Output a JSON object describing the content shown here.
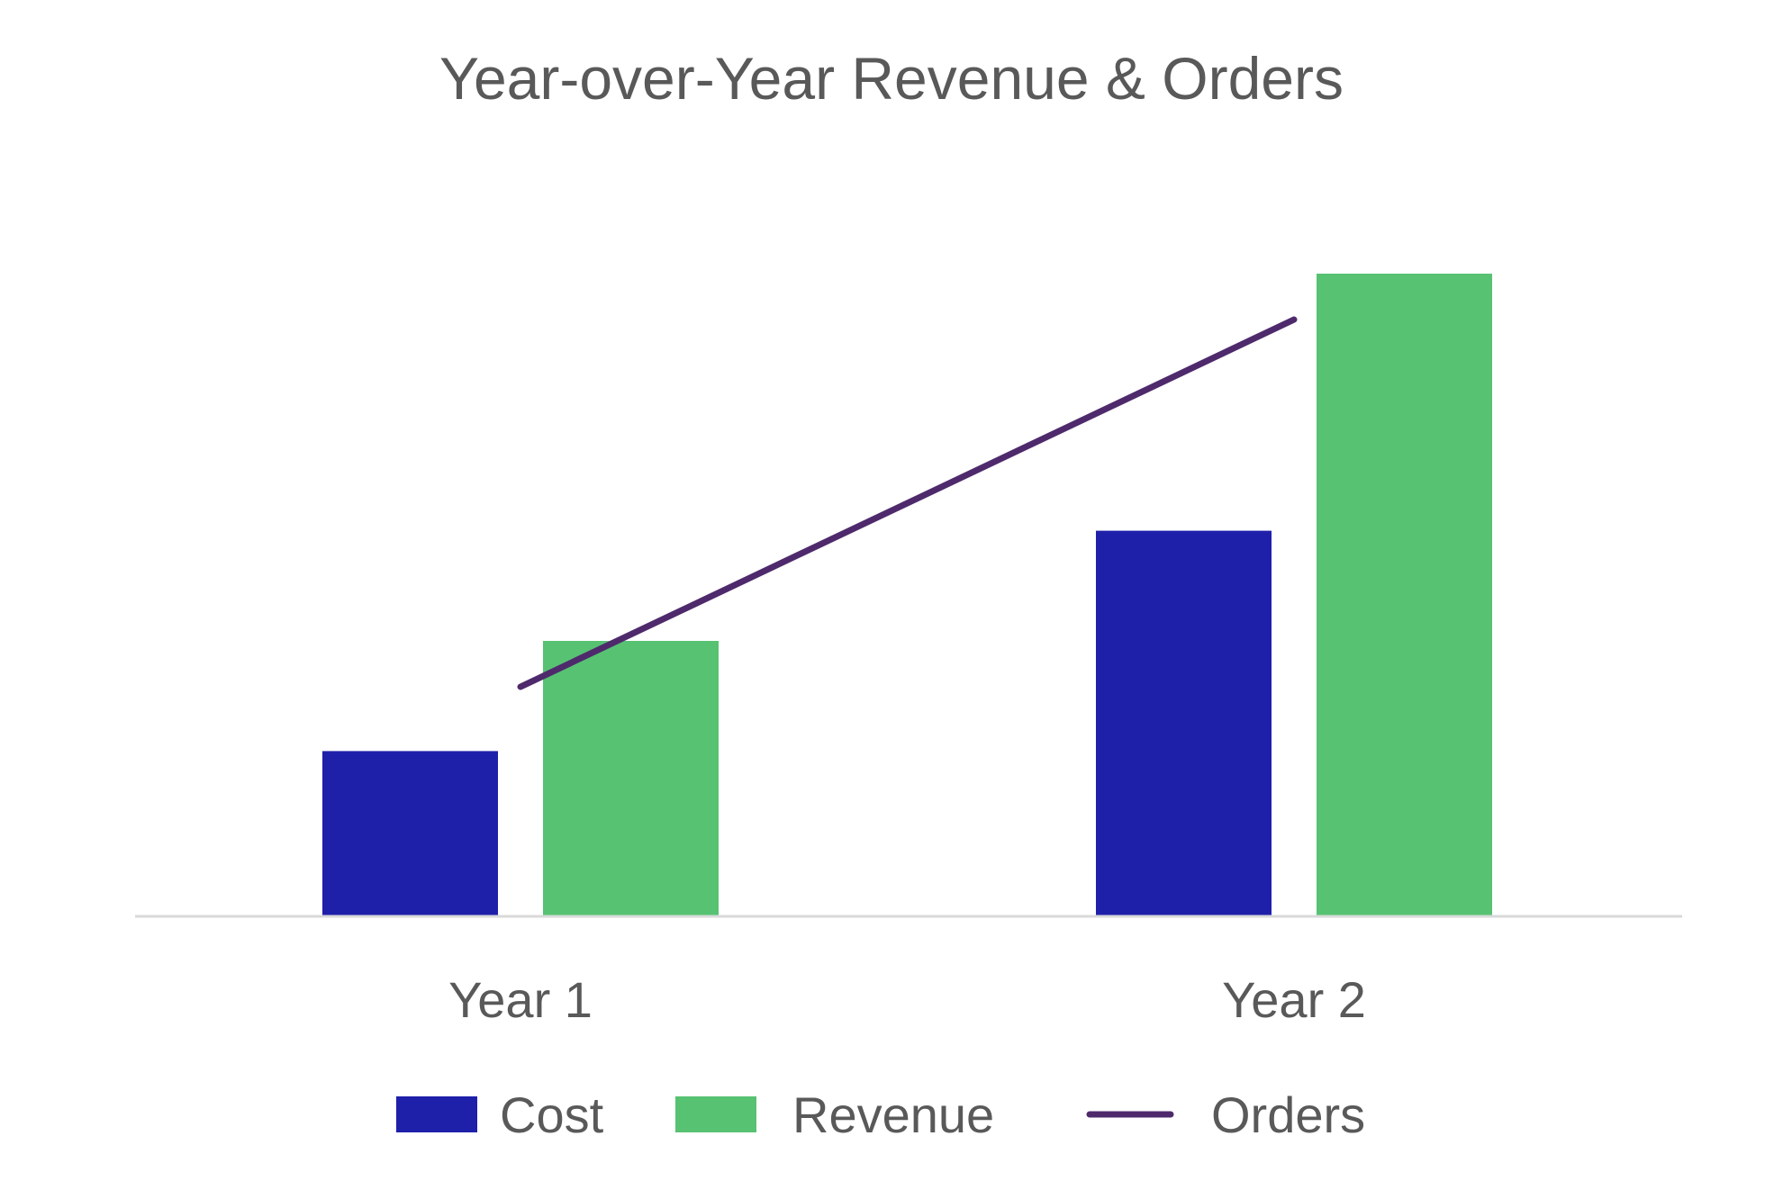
{
  "chart_data": {
    "type": "bar",
    "title": "Year-over-Year Revenue & Orders",
    "xlabel": "",
    "ylabel": "",
    "categories": [
      "Year 1",
      "Year 2"
    ],
    "series": [
      {
        "name": "Cost",
        "kind": "bar",
        "color": "#1f20aa",
        "values": [
          18,
          42
        ]
      },
      {
        "name": "Revenue",
        "kind": "bar",
        "color": "#57c272",
        "values": [
          30,
          70
        ]
      },
      {
        "name": "Orders",
        "kind": "line",
        "color": "#4e2a6c",
        "values": [
          25,
          65
        ]
      }
    ],
    "ylim": [
      0,
      80
    ],
    "grid": false,
    "legend_position": "bottom"
  }
}
